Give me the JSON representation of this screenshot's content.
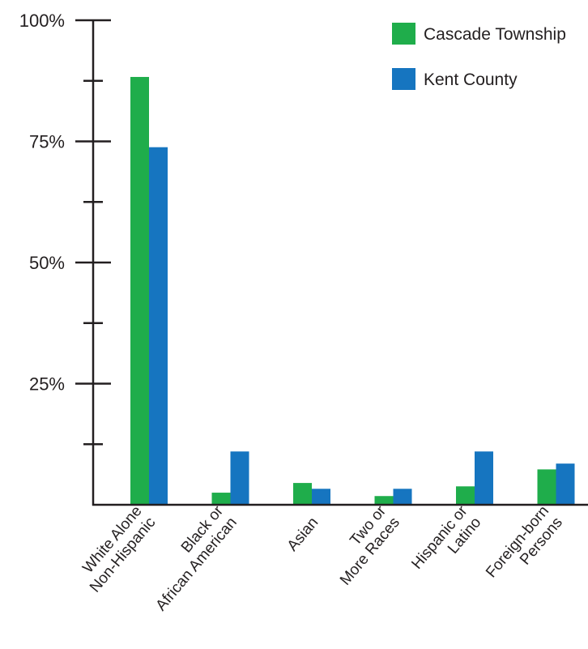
{
  "chart_data": {
    "type": "bar",
    "title": "",
    "xlabel": "",
    "ylabel": "",
    "ylim": [
      0,
      100
    ],
    "y_ticks": [
      {
        "value": 25,
        "label": "25%"
      },
      {
        "value": 50,
        "label": "50%"
      },
      {
        "value": 75,
        "label": "75%"
      },
      {
        "value": 100,
        "label": "100%"
      }
    ],
    "y_minor_ticks": [
      12.5,
      37.5,
      62.5,
      87.5
    ],
    "grid": false,
    "legend_position": "top-right",
    "categories": [
      [
        "White Alone",
        "Non-Hispanic"
      ],
      [
        "Black or",
        "African American"
      ],
      [
        "Asian"
      ],
      [
        "Two or",
        "More Races"
      ],
      [
        "Hispanic or",
        "Latino"
      ],
      [
        "Foreign-born",
        "Persons"
      ]
    ],
    "series": [
      {
        "name": "Cascade Township",
        "color": "#1fad4b",
        "values": [
          88.3,
          2.5,
          4.5,
          1.8,
          3.8,
          7.3
        ]
      },
      {
        "name": "Kent County",
        "color": "#1675c0",
        "values": [
          73.8,
          11.0,
          3.3,
          3.3,
          11.0,
          8.5
        ]
      }
    ]
  }
}
